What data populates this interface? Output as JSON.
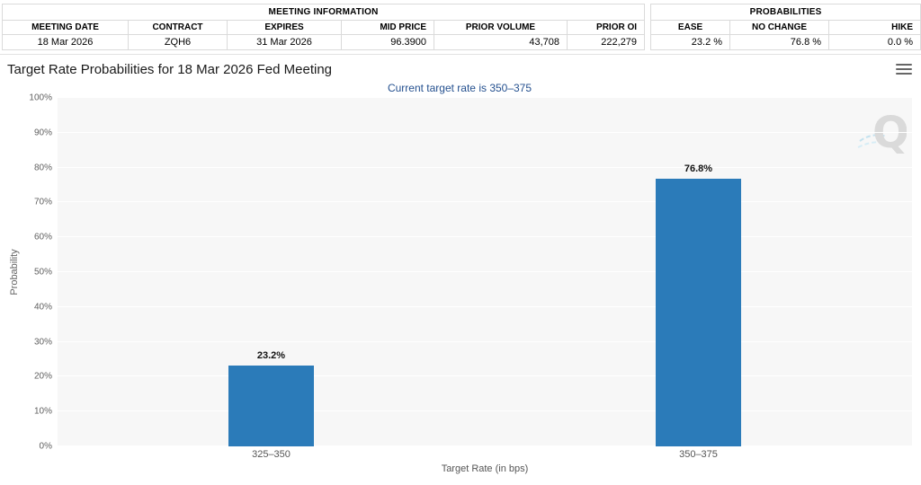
{
  "header": {
    "meeting_info": {
      "title": "MEETING INFORMATION",
      "columns": [
        "MEETING DATE",
        "CONTRACT",
        "EXPIRES",
        "MID PRICE",
        "PRIOR VOLUME",
        "PRIOR OI"
      ],
      "values": [
        "18 Mar 2026",
        "ZQH6",
        "31 Mar 2026",
        "96.3900",
        "43,708",
        "222,279"
      ]
    },
    "probabilities": {
      "title": "PROBABILITIES",
      "columns": [
        "EASE",
        "NO CHANGE",
        "HIKE"
      ],
      "values": [
        "23.2 %",
        "76.8 %",
        "0.0 %"
      ]
    }
  },
  "chart": {
    "title": "Target Rate Probabilities for 18 Mar 2026 Fed Meeting",
    "subtitle": "Current target rate is 350–375",
    "menu_icon": "hamburger-menu-icon",
    "watermark_icon": "quikstrike-q-logo",
    "watermark_letter": "Q"
  },
  "colors": {
    "bar": "#2b7bb9",
    "subtitle_text": "#24508f",
    "plot_background": "#f7f7f7",
    "gridline": "#ffffff"
  },
  "chart_data": {
    "type": "bar",
    "categories": [
      "325–350",
      "350–375"
    ],
    "values": [
      23.2,
      76.8
    ],
    "data_labels": [
      "23.2%",
      "76.8%"
    ],
    "title": "Target Rate Probabilities for 18 Mar 2026 Fed Meeting",
    "subtitle": "Current target rate is 350–375",
    "xlabel": "Target Rate (in bps)",
    "ylabel": "Probability",
    "ylim": [
      0,
      100
    ],
    "ytick_step": 10,
    "ytick_suffix": "%",
    "grid": true,
    "legend": false
  }
}
